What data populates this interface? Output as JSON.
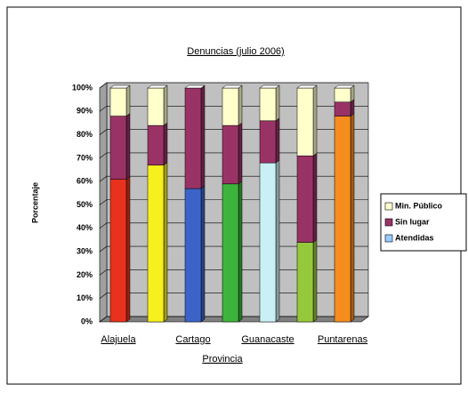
{
  "chart_data": {
    "type": "stacked-bar-3d",
    "title": "Denuncias (julio 2006)",
    "y_label": "Porcentaje",
    "x_label": "Provincia",
    "categories": [
      "Alajuela",
      null,
      "Cartago",
      null,
      "Guanacaste",
      null,
      "Puntarenas"
    ],
    "series": [
      {
        "name": "Atendidas",
        "color": "#99ccff",
        "colors": [
          "#e8321e",
          "#f5f01e",
          "#3c64c8",
          "#3cb43c",
          "#c8f0f5",
          "#96c83c",
          "#f58c1e"
        ],
        "values": [
          61,
          67,
          57,
          59,
          68,
          34,
          88
        ]
      },
      {
        "name": "Sin lugar",
        "color": "#993366",
        "values": [
          27,
          17,
          43,
          25,
          18,
          37,
          6
        ]
      },
      {
        "name": "Min. Público",
        "color": "#ffffcc",
        "values": [
          12,
          16,
          0,
          16,
          14,
          29,
          6
        ]
      }
    ],
    "ylim": [
      0,
      100
    ],
    "yticks": [
      {
        "value": 0,
        "label": "0%"
      },
      {
        "value": 10,
        "label": "10%"
      },
      {
        "value": 20,
        "label": "20%"
      },
      {
        "value": 30,
        "label": "30%"
      },
      {
        "value": 40,
        "label": "40%"
      },
      {
        "value": 50,
        "label": "50%"
      },
      {
        "value": 60,
        "label": "60%"
      },
      {
        "value": 70,
        "label": "70%"
      },
      {
        "value": 80,
        "label": "80%"
      },
      {
        "value": 90,
        "label": "90%"
      },
      {
        "value": 100,
        "label": "100%"
      }
    ],
    "grid": true,
    "legend": "right"
  }
}
